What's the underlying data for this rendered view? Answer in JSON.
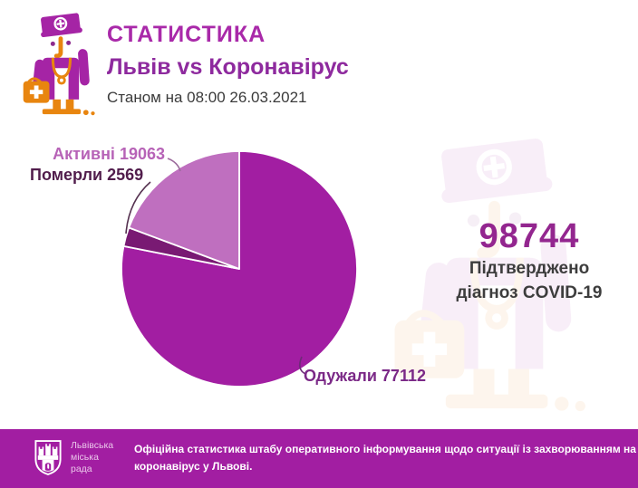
{
  "header": {
    "title": "СТАТИСТИКА",
    "subtitle": "Львів vs Коронавірус",
    "as_of": "Станом на 08:00 26.03.2021"
  },
  "chart_data": {
    "type": "pie",
    "title": "",
    "total": 98744,
    "start_angle_deg": 0,
    "direction": "clockwise",
    "labels_style": "callout",
    "slices": [
      {
        "label": "Одужали",
        "value": 77112,
        "display": "Одужали 77112",
        "color": "#a21ea2"
      },
      {
        "label": "Померли",
        "value": 2569,
        "display": "Померли 2569",
        "color": "#791a73"
      },
      {
        "label": "Активні",
        "value": 19063,
        "display": "Активні 19063",
        "color": "#bf6fbf"
      }
    ]
  },
  "confirmed": {
    "value": "98744",
    "lines": [
      "Підтверджено",
      "діагноз COVID-19"
    ]
  },
  "footer": {
    "org_lines": [
      "Львівська",
      "міська",
      "рада"
    ],
    "note_lines": [
      "Офіційна статистика штабу оперативного інформування щодо ситуації із захворюванням на",
      "коронавірус у Львові."
    ]
  },
  "icons": {
    "header_icon": "doctor-icon",
    "watermark_icon": "doctor-watermark-icon",
    "footer_icon": "lviv-city-council-crest-icon"
  },
  "colors": {
    "title_magenta": "#a929a9",
    "subtitle_purple": "#8e2a9e",
    "date_text": "#3b3b3b",
    "slice_recovered": "#a21ea2",
    "slice_died": "#791a73",
    "slice_active": "#bf6fbf",
    "label_active": "#b763b7",
    "label_died": "#511d4c",
    "label_recovered": "#7b2987",
    "big_number": "#93268f",
    "caption_text": "#3d3d3d",
    "footer_bg": "#a21ea2",
    "footer_org_text": "#eac6ea",
    "footer_note_text": "#ffffff",
    "icon_purple": "#a524a5",
    "icon_orange": "#e8850f"
  }
}
